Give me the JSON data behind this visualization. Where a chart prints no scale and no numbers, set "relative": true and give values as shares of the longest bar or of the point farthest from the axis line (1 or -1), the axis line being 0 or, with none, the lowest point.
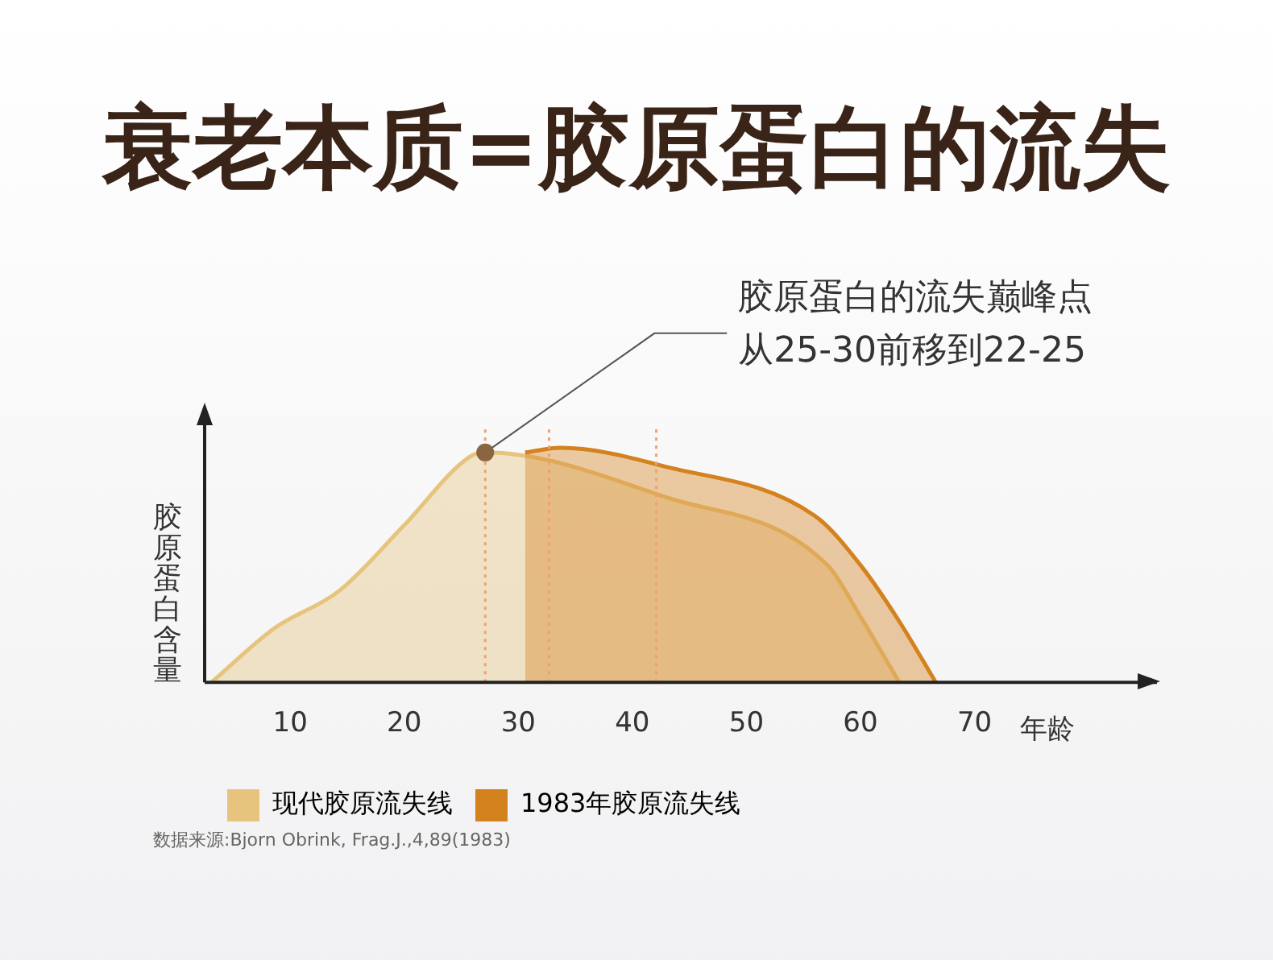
{
  "chart_data": {
    "type": "area",
    "title": "衰老本质=胶原蛋白的流失",
    "xlabel": "年龄",
    "ylabel": "胶原蛋白含量",
    "relative": true,
    "xlim": [
      2.5,
      86
    ],
    "xticks": [
      10,
      20,
      30,
      40,
      50,
      60,
      70
    ],
    "legend": "bottom left",
    "grid": false,
    "marker": "none",
    "series": [
      {
        "name": "现代胶原流失线",
        "color": "#e6c47d",
        "x": [
          3.1,
          8.6,
          14.3,
          20,
          25.7,
          27.1,
          42.9,
          57.1,
          60,
          63.4
        ],
        "values": [
          0,
          0.23,
          0.39,
          0.67,
          0.96,
          0.98,
          0.79,
          0.5,
          0.28,
          0
        ]
      },
      {
        "name": "1983年胶原流失线",
        "color": "#d4821e",
        "x": [
          30.6,
          33.7,
          42.9,
          56,
          60,
          63.4,
          66.6
        ],
        "values": [
          0.98,
          1,
          0.92,
          0.71,
          0.5,
          0.26,
          0
        ]
      }
    ],
    "ref_lines": [
      {
        "axis": "x",
        "value": 27.1,
        "color": "#f0a070",
        "line_style": "dotted"
      },
      {
        "axis": "x",
        "value": 32.7,
        "color": "#f0a070",
        "line_style": "dotted"
      },
      {
        "axis": "x",
        "value": 42.1,
        "color": "#f0a070",
        "line_style": "dotted"
      }
    ],
    "annotations": [
      {
        "text": "胶原蛋白的流失巅峰点从25-30前移到22-25",
        "x": 27.1,
        "y": 0.98
      },
      "数据来源:Bjorn Obrink, Frag.J.,4,89(1983)"
    ]
  }
}
